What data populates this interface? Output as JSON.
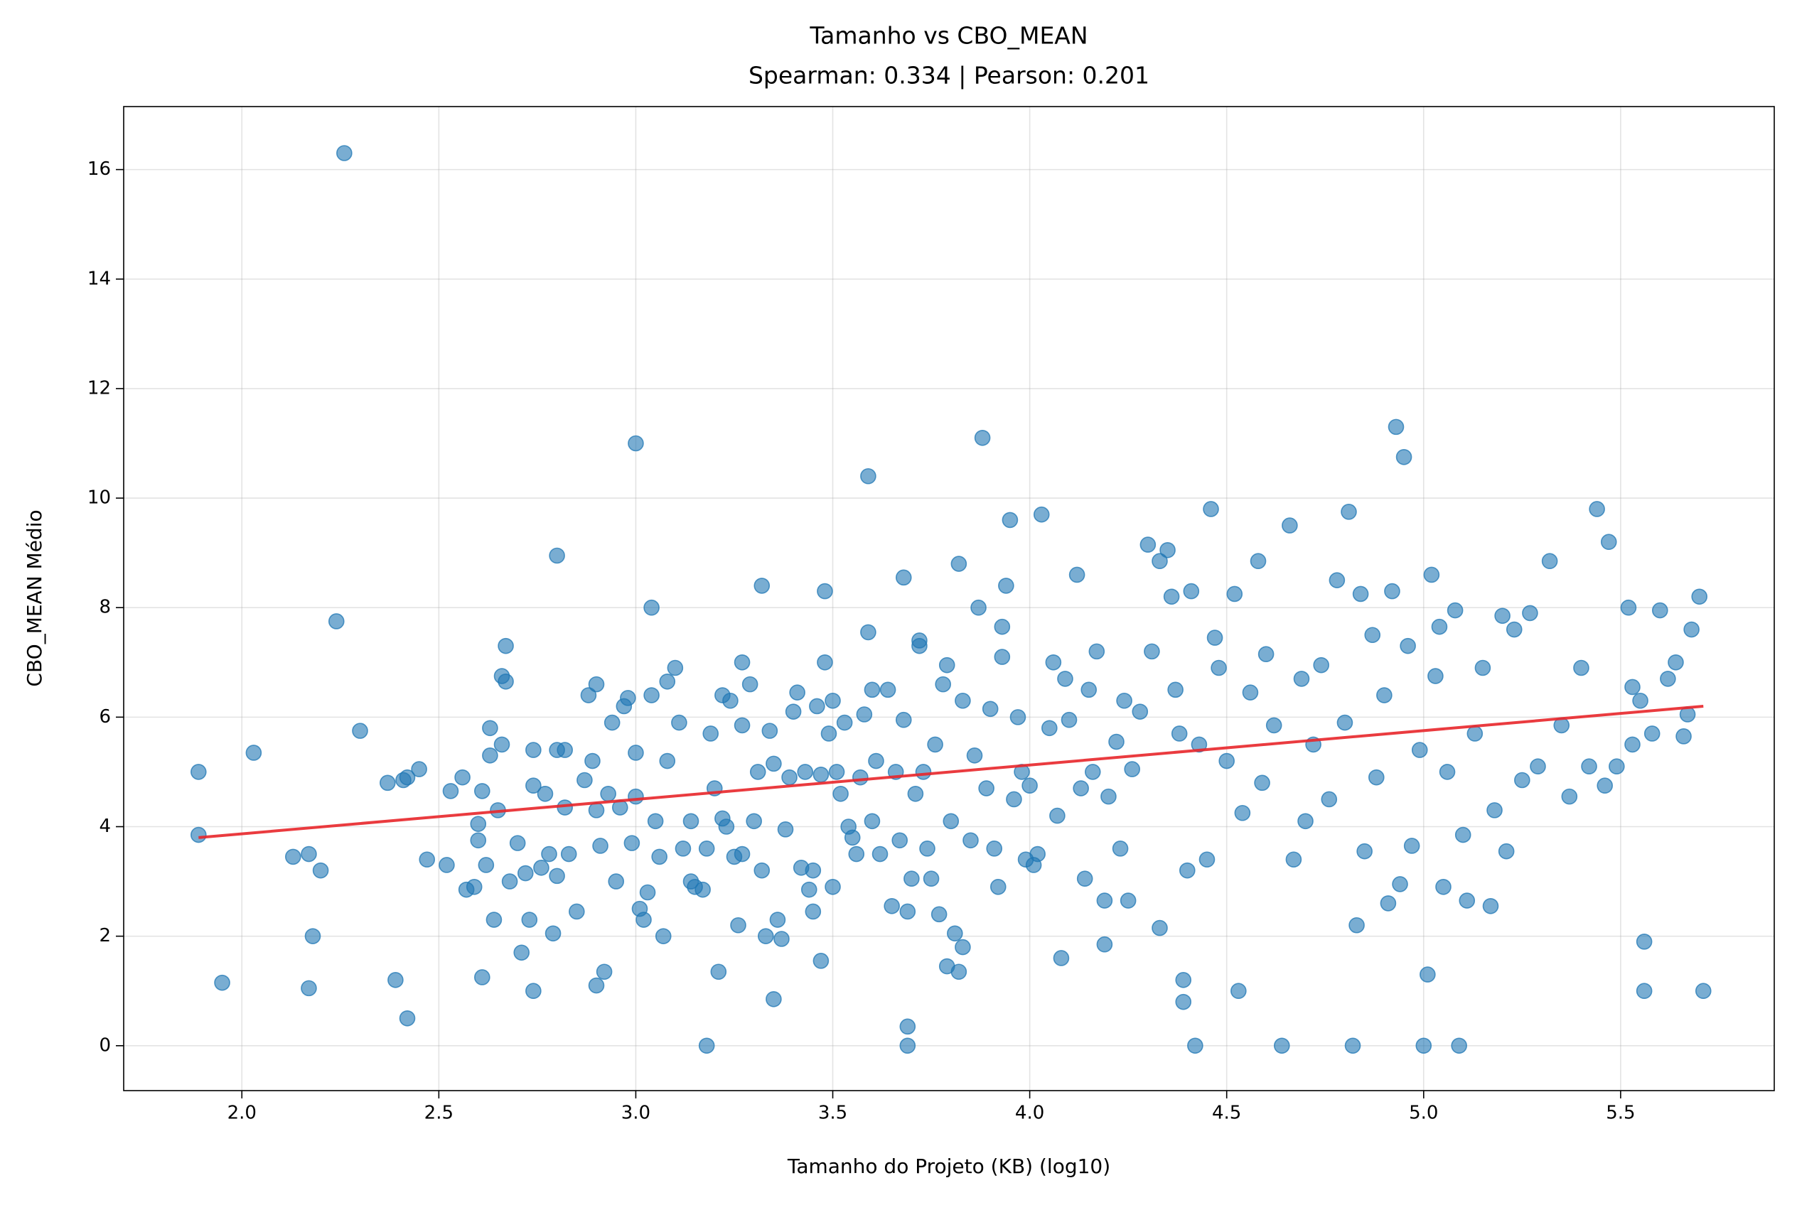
{
  "chart_data": {
    "type": "scatter",
    "title": "Tamanho vs CBO_MEAN",
    "subtitle": "Spearman: 0.334 | Pearson: 0.201",
    "xlabel": "Tamanho do Projeto (KB) (log10)",
    "ylabel": "CBO_MEAN Médio",
    "color": "#1f77b4",
    "x": [
      1.89,
      1.89,
      1.95,
      2.03,
      2.13,
      2.17,
      2.17,
      2.18,
      2.2,
      2.24,
      2.26,
      2.3,
      2.37,
      2.39,
      2.41,
      2.42,
      2.42,
      2.45,
      2.47,
      2.52,
      2.53,
      2.56,
      2.57,
      2.59,
      2.6,
      2.6,
      2.61,
      2.61,
      2.62,
      2.63,
      2.63,
      2.64,
      2.65,
      2.66,
      2.66,
      2.67,
      2.67,
      2.68,
      2.7,
      2.71,
      2.72,
      2.73,
      2.74,
      2.74,
      2.74,
      2.76,
      2.77,
      2.78,
      2.79,
      2.8,
      2.8,
      2.8,
      2.82,
      2.82,
      2.83,
      2.85,
      2.87,
      2.88,
      2.89,
      2.9,
      2.9,
      2.9,
      2.91,
      2.92,
      2.93,
      2.94,
      2.95,
      2.96,
      2.97,
      2.98,
      2.99,
      3.0,
      3.0,
      3.0,
      3.01,
      3.02,
      3.03,
      3.04,
      3.04,
      3.05,
      3.06,
      3.07,
      3.08,
      3.08,
      3.1,
      3.11,
      3.12,
      3.14,
      3.14,
      3.15,
      3.17,
      3.18,
      3.18,
      3.19,
      3.2,
      3.21,
      3.22,
      3.22,
      3.23,
      3.24,
      3.25,
      3.26,
      3.27,
      3.27,
      3.27,
      3.29,
      3.3,
      3.31,
      3.32,
      3.32,
      3.33,
      3.34,
      3.35,
      3.35,
      3.36,
      3.37,
      3.38,
      3.39,
      3.4,
      3.41,
      3.42,
      3.43,
      3.44,
      3.45,
      3.45,
      3.46,
      3.47,
      3.47,
      3.48,
      3.48,
      3.49,
      3.5,
      3.5,
      3.51,
      3.52,
      3.53,
      3.54,
      3.55,
      3.56,
      3.57,
      3.58,
      3.59,
      3.59,
      3.6,
      3.6,
      3.61,
      3.62,
      3.64,
      3.65,
      3.66,
      3.67,
      3.68,
      3.68,
      3.69,
      3.69,
      3.69,
      3.7,
      3.71,
      3.72,
      3.72,
      3.73,
      3.74,
      3.75,
      3.76,
      3.77,
      3.78,
      3.79,
      3.79,
      3.8,
      3.81,
      3.82,
      3.82,
      3.83,
      3.83,
      3.85,
      3.86,
      3.87,
      3.88,
      3.89,
      3.9,
      3.91,
      3.92,
      3.93,
      3.93,
      3.94,
      3.95,
      3.96,
      3.97,
      3.98,
      3.99,
      4.0,
      4.01,
      4.02,
      4.03,
      4.05,
      4.06,
      4.07,
      4.08,
      4.09,
      4.1,
      4.12,
      4.13,
      4.14,
      4.15,
      4.16,
      4.17,
      4.19,
      4.19,
      4.2,
      4.22,
      4.23,
      4.24,
      4.25,
      4.26,
      4.28,
      4.3,
      4.31,
      4.33,
      4.33,
      4.35,
      4.36,
      4.37,
      4.38,
      4.39,
      4.39,
      4.4,
      4.41,
      4.42,
      4.43,
      4.45,
      4.46,
      4.47,
      4.48,
      4.5,
      4.52,
      4.53,
      4.54,
      4.56,
      4.58,
      4.59,
      4.6,
      4.62,
      4.64,
      4.66,
      4.67,
      4.69,
      4.7,
      4.72,
      4.74,
      4.76,
      4.78,
      4.8,
      4.81,
      4.82,
      4.83,
      4.84,
      4.85,
      4.87,
      4.88,
      4.9,
      4.91,
      4.92,
      4.93,
      4.94,
      4.95,
      4.96,
      4.97,
      4.99,
      5.0,
      5.01,
      5.02,
      5.03,
      5.04,
      5.05,
      5.06,
      5.08,
      5.09,
      5.1,
      5.11,
      5.13,
      5.15,
      5.17,
      5.18,
      5.2,
      5.21,
      5.23,
      5.25,
      5.27,
      5.29,
      5.32,
      5.35,
      5.37,
      5.4,
      5.42,
      5.44,
      5.46,
      5.47,
      5.49,
      5.52,
      5.53,
      5.53,
      5.55,
      5.56,
      5.56,
      5.58,
      5.6,
      5.62,
      5.64,
      5.66,
      5.67,
      5.68,
      5.7,
      5.71
    ],
    "values": [
      5.0,
      3.85,
      1.15,
      5.35,
      3.45,
      3.5,
      1.05,
      2.0,
      3.2,
      7.75,
      16.3,
      5.75,
      4.8,
      1.2,
      4.85,
      4.9,
      0.5,
      5.05,
      3.4,
      3.3,
      4.65,
      4.9,
      2.85,
      2.9,
      4.05,
      3.75,
      4.65,
      1.25,
      3.3,
      5.8,
      5.3,
      2.3,
      4.3,
      5.5,
      6.75,
      7.3,
      6.65,
      3.0,
      3.7,
      1.7,
      3.15,
      2.3,
      1.0,
      5.4,
      4.75,
      3.25,
      4.6,
      3.5,
      2.05,
      8.95,
      5.4,
      3.1,
      4.35,
      5.4,
      3.5,
      2.45,
      4.85,
      6.4,
      5.2,
      6.6,
      4.3,
      1.1,
      3.65,
      1.35,
      4.6,
      5.9,
      3.0,
      4.35,
      6.2,
      6.35,
      3.7,
      11.0,
      5.35,
      4.55,
      2.5,
      2.3,
      2.8,
      8.0,
      6.4,
      4.1,
      3.45,
      2.0,
      5.2,
      6.65,
      6.9,
      5.9,
      3.6,
      3.0,
      4.1,
      2.9,
      2.85,
      0.0,
      3.6,
      5.7,
      4.7,
      1.35,
      4.15,
      6.4,
      4.0,
      6.3,
      3.45,
      2.2,
      7.0,
      5.85,
      3.5,
      6.6,
      4.1,
      5.0,
      3.2,
      8.4,
      2.0,
      5.75,
      0.85,
      5.15,
      2.3,
      1.95,
      3.95,
      4.9,
      6.1,
      6.45,
      3.25,
      5.0,
      2.85,
      3.2,
      2.45,
      6.2,
      4.95,
      1.55,
      8.3,
      7.0,
      5.7,
      6.3,
      2.9,
      5.0,
      4.6,
      5.9,
      4.0,
      3.8,
      3.5,
      4.9,
      6.05,
      7.55,
      10.4,
      6.5,
      4.1,
      5.2,
      3.5,
      6.5,
      2.55,
      5.0,
      3.75,
      8.55,
      5.95,
      0.35,
      0.0,
      2.45,
      3.05,
      4.6,
      7.4,
      7.3,
      5.0,
      3.6,
      3.05,
      5.5,
      2.4,
      6.6,
      1.45,
      6.95,
      4.1,
      2.05,
      8.8,
      1.35,
      1.8,
      6.3,
      3.75,
      5.3,
      8.0,
      11.1,
      4.7,
      6.15,
      3.6,
      2.9,
      7.65,
      7.1,
      8.4,
      9.6,
      4.5,
      6.0,
      5.0,
      3.4,
      4.75,
      3.3,
      3.5,
      9.7,
      5.8,
      7.0,
      4.2,
      1.6,
      6.7,
      5.95,
      8.6,
      4.7,
      3.05,
      6.5,
      5.0,
      7.2,
      1.85,
      2.65,
      4.55,
      5.55,
      3.6,
      6.3,
      2.65,
      5.05,
      6.1,
      9.15,
      7.2,
      2.15,
      8.85,
      9.05,
      8.2,
      6.5,
      5.7,
      1.2,
      0.8,
      3.2,
      8.3,
      0.0,
      5.5,
      3.4,
      9.8,
      7.45,
      6.9,
      5.2,
      8.25,
      1.0,
      4.25,
      6.45,
      8.85,
      4.8,
      7.15,
      5.85,
      0.0,
      9.5,
      3.4,
      6.7,
      4.1,
      5.5,
      6.95,
      4.5,
      8.5,
      5.9,
      9.75,
      0.0,
      2.2,
      8.25,
      3.55,
      7.5,
      4.9,
      6.4,
      2.6,
      8.3,
      11.3,
      2.95,
      10.75,
      7.3,
      3.65,
      5.4,
      0.0,
      1.3,
      8.6,
      6.75,
      7.65,
      2.9,
      5.0,
      7.95,
      0.0,
      3.85,
      2.65,
      5.7,
      6.9,
      2.55,
      4.3,
      7.85,
      3.55,
      7.6,
      4.85,
      7.9,
      5.1,
      8.85,
      5.85,
      4.55,
      6.9,
      5.1,
      9.8,
      4.75,
      9.2,
      5.1,
      8.0,
      6.55,
      5.5,
      6.3,
      1.0,
      1.9,
      5.7,
      7.95,
      6.7,
      7.0,
      5.65,
      6.05,
      7.6,
      8.2,
      1.0
    ],
    "fit": {
      "x": [
        1.89,
        5.71
      ],
      "values": [
        3.8,
        6.2
      ],
      "color": "#e8262a"
    },
    "xlim": [
      1.7,
      5.89
    ],
    "ylim": [
      -0.82,
      17.15
    ],
    "xticks": [
      {
        "value": 2.0,
        "label": "2.0"
      },
      {
        "value": 2.5,
        "label": "2.5"
      },
      {
        "value": 3.0,
        "label": "3.0"
      },
      {
        "value": 3.5,
        "label": "3.5"
      },
      {
        "value": 4.0,
        "label": "4.0"
      },
      {
        "value": 4.5,
        "label": "4.5"
      },
      {
        "value": 5.0,
        "label": "5.0"
      },
      {
        "value": 5.5,
        "label": "5.5"
      }
    ],
    "yticks": [
      0,
      2,
      4,
      6,
      8,
      10,
      12,
      14,
      16
    ],
    "grid": true
  }
}
